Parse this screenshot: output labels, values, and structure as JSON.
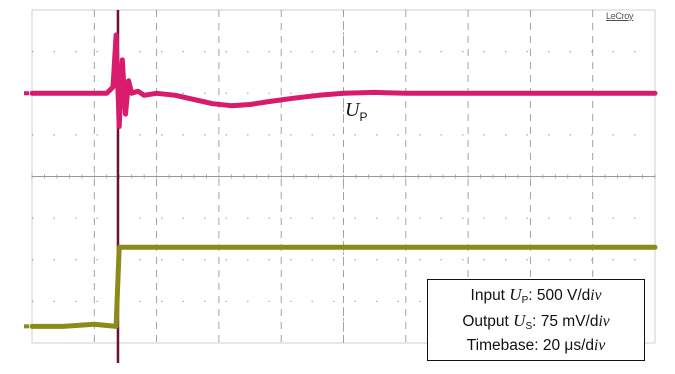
{
  "chart_data": {
    "type": "line",
    "instrument_brand": "LeCroy",
    "annotation": {
      "symbol": "U",
      "subscript": "P"
    },
    "info": {
      "input": {
        "prefix": "Input ",
        "symbol": "U",
        "subscript": "P",
        "value": ": 500 V/d",
        "unit_italic": "iv"
      },
      "output": {
        "prefix": "Output ",
        "symbol": "U",
        "subscript": "S",
        "value": ": 75 mV/d",
        "unit_italic": "iv"
      },
      "timebase": {
        "prefix": "Timebase: 20 μs/d",
        "unit_italic": "iv"
      }
    },
    "grid": true,
    "grid_divisions": {
      "x": 10,
      "y": 8
    },
    "x_range_div": [
      0,
      10
    ],
    "y_range_div": [
      -4,
      4
    ],
    "series": [
      {
        "color": "#d81b6c",
        "x": [
          0,
          0.3,
          0.8,
          1.1,
          1.2,
          1.3,
          1.35,
          1.4,
          1.45,
          1.5,
          1.55,
          1.6,
          1.7,
          1.8,
          2.0,
          2.3,
          2.6,
          2.9,
          3.2,
          3.5,
          3.8,
          4.2,
          4.6,
          5.0,
          5.5,
          6.0,
          7.0,
          8.0,
          9.0,
          10.0
        ],
        "y": [
          2.0,
          2.0,
          2.0,
          2.0,
          2.0,
          2.15,
          3.4,
          1.2,
          2.8,
          1.5,
          2.3,
          2.0,
          2.05,
          1.95,
          2.0,
          1.95,
          1.85,
          1.75,
          1.7,
          1.73,
          1.8,
          1.88,
          1.95,
          2.0,
          2.02,
          2.0,
          2.0,
          2.0,
          2.0,
          2.0
        ]
      },
      {
        "color": "#8b8b1c",
        "x": [
          0,
          0.5,
          1.0,
          1.35,
          1.4,
          1.5,
          2.0,
          3.0,
          4.0,
          5.0,
          6.0,
          7.0,
          8.0,
          9.0,
          10.0
        ],
        "y": [
          -3.6,
          -3.6,
          -3.55,
          -3.6,
          -1.7,
          -1.7,
          -1.7,
          -1.7,
          -1.7,
          -1.7,
          -1.7,
          -1.7,
          -1.7,
          -1.7,
          -1.7
        ]
      }
    ],
    "pulse_color": "#6b1036",
    "grid_color": "#777777",
    "axis_color": "#999999"
  }
}
